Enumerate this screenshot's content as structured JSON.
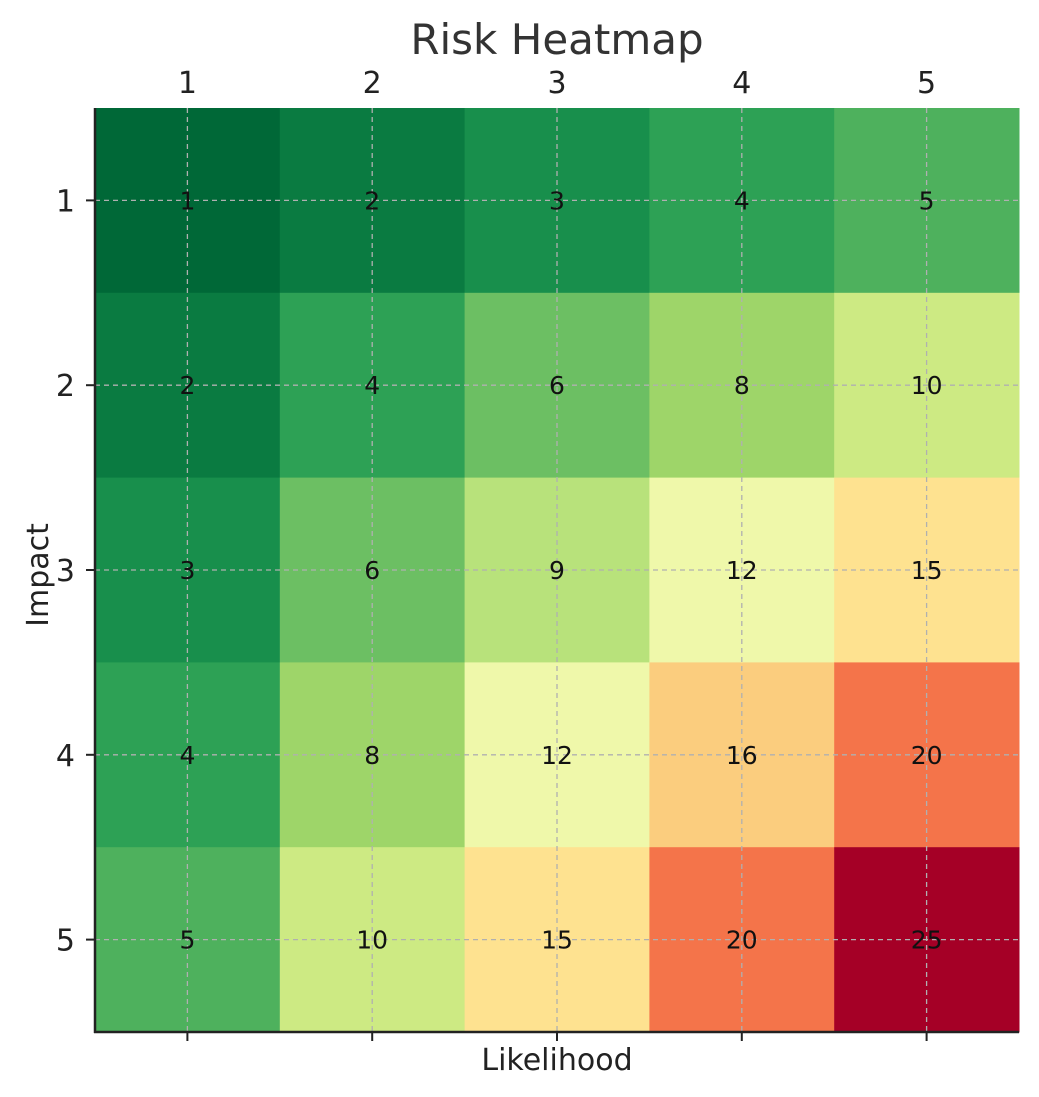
{
  "chart_data": {
    "type": "heatmap",
    "title": "Risk Heatmap",
    "xlabel": "Likelihood",
    "ylabel": "Impact",
    "x_categories": [
      "1",
      "2",
      "3",
      "4",
      "5"
    ],
    "y_categories": [
      "1",
      "2",
      "3",
      "4",
      "5"
    ],
    "x_axis_position": "top",
    "grid": true,
    "colormap": "RdYlGn_r",
    "values": [
      [
        1,
        2,
        3,
        4,
        5
      ],
      [
        2,
        4,
        6,
        8,
        10
      ],
      [
        3,
        6,
        9,
        12,
        15
      ],
      [
        4,
        8,
        12,
        16,
        20
      ],
      [
        5,
        10,
        15,
        20,
        25
      ]
    ],
    "cell_colors": {
      "1": "#006837",
      "2": "#0a7b41",
      "3": "#188f4c",
      "4": "#2da155",
      "5": "#4eb15d",
      "6": "#6cbf63",
      "8": "#9ed569",
      "9": "#b8e27b",
      "10": "#cdea83",
      "12": "#eff8aa",
      "15": "#fee290",
      "16": "#fbcd7e",
      "20": "#f4744a",
      "25": "#a50026"
    }
  }
}
